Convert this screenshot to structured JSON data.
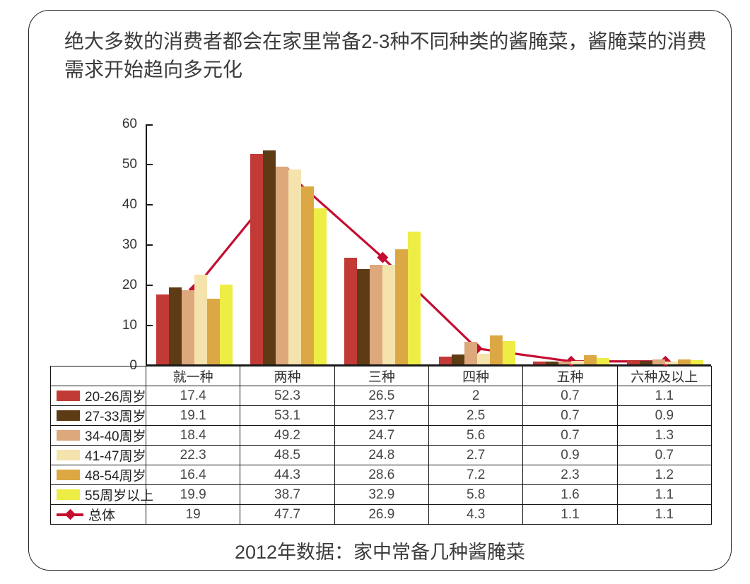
{
  "slide": {
    "title": "绝大多数的消费者都会在家里常备2-3种不同种类的酱腌菜，酱腌菜的消费需求开始趋向多元化",
    "caption": "2012年数据：家中常备几种酱腌菜"
  },
  "colors": {
    "axis": "#1a1a1a",
    "table_border": "#141414",
    "title_text": "#3c3c3c",
    "line_series": "#c50c31"
  },
  "chart_data": {
    "type": "bar",
    "subtype": "grouped bars with overlaid line series",
    "categories": [
      "就一种",
      "两种",
      "三种",
      "四种",
      "五种",
      "六种及以上"
    ],
    "series": [
      {
        "name": "20-26周岁",
        "type": "bar",
        "color": "#c23a35",
        "values": [
          17.4,
          52.3,
          26.5,
          2,
          0.7,
          1.1
        ]
      },
      {
        "name": "27-33周岁",
        "type": "bar",
        "color": "#5d3c15",
        "values": [
          19.1,
          53.1,
          23.7,
          2.5,
          0.7,
          0.9
        ]
      },
      {
        "name": "34-40周岁",
        "type": "bar",
        "color": "#dca87c",
        "values": [
          18.4,
          49.2,
          24.7,
          5.6,
          0.7,
          1.3
        ]
      },
      {
        "name": "41-47周岁",
        "type": "bar",
        "color": "#f5e3ae",
        "values": [
          22.3,
          48.5,
          24.8,
          2.7,
          0.9,
          0.7
        ]
      },
      {
        "name": "48-54周岁",
        "type": "bar",
        "color": "#dca843",
        "values": [
          16.4,
          44.3,
          28.6,
          7.2,
          2.3,
          1.2
        ]
      },
      {
        "name": "55周岁以上",
        "type": "bar",
        "color": "#eded45",
        "values": [
          19.9,
          38.7,
          32.9,
          5.8,
          1.6,
          1.1
        ]
      },
      {
        "name": "总体",
        "type": "line",
        "color": "#c50c31",
        "values": [
          19,
          47.7,
          26.9,
          4.3,
          1.1,
          1.1
        ]
      }
    ],
    "ylim": [
      0,
      60
    ],
    "yticks": [
      0,
      10,
      20,
      30,
      40,
      50,
      60
    ],
    "grid": false,
    "legend_position": "table-left",
    "data_table_shown": true
  }
}
